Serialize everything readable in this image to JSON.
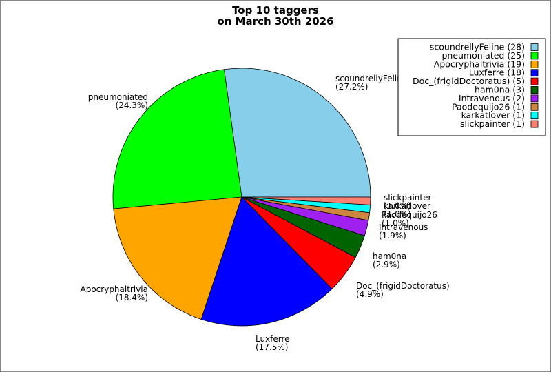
{
  "chart_data": {
    "type": "pie",
    "title": [
      "Top 10 taggers",
      "on March 30th 2026"
    ],
    "legend_position": "top-right",
    "slices": [
      {
        "name": "scoundrellyFeline",
        "value": 28,
        "percent": "27.2%",
        "color": "#87ceeb",
        "legend": "scoundrellyFeline (28)",
        "label": "scoundrellyFeline",
        "label_pct": "(27.2%)"
      },
      {
        "name": "pneumoniated",
        "value": 25,
        "percent": "24.3%",
        "color": "#00ff00",
        "legend": "pneumoniated (25)",
        "label": "pneumoniated",
        "label_pct": "(24.3%)"
      },
      {
        "name": "Apocryphaltrivia",
        "value": 19,
        "percent": "18.4%",
        "color": "#ffa500",
        "legend": "Apocryphaltrivia (19)",
        "label": "Apocryphaltrivia",
        "label_pct": "(18.4%)"
      },
      {
        "name": "Luxferre",
        "value": 18,
        "percent": "17.5%",
        "color": "#0000ff",
        "legend": "Luxferre (18)",
        "label": "Luxferre",
        "label_pct": "(17.5%)"
      },
      {
        "name": "Doc_(frigidDoctoratus)",
        "value": 5,
        "percent": "4.9%",
        "color": "#ff0000",
        "legend": "Doc_(frigidDoctoratus) (5)",
        "label": "Doc_(frigidDoctoratus)",
        "label_pct": "(4.9%)"
      },
      {
        "name": "ham0na",
        "value": 3,
        "percent": "2.9%",
        "color": "#006400",
        "legend": "ham0na (3)",
        "label": "ham0na",
        "label_pct": "(2.9%)"
      },
      {
        "name": "Intravenous",
        "value": 2,
        "percent": "1.9%",
        "color": "#a020f0",
        "legend": "Intravenous (2)",
        "label": "Intravenous",
        "label_pct": "(1.9%)"
      },
      {
        "name": "Paodequijo26",
        "value": 1,
        "percent": "1.0%",
        "color": "#cd853f",
        "legend": "Paodequijo26 (1)",
        "label": "Paodequijo26",
        "label_pct": "(1.0%)"
      },
      {
        "name": "karkatlover",
        "value": 1,
        "percent": "1.0%",
        "color": "#00ffff",
        "legend": "karkatlover (1)",
        "label": "karkatlover",
        "label_pct": "(1.0%)"
      },
      {
        "name": "slickpainter",
        "value": 1,
        "percent": "1.0%",
        "color": "#fa8072",
        "legend": "slickpainter (1)",
        "label": "slickpainter",
        "label_pct": "(1.0%)"
      }
    ]
  }
}
